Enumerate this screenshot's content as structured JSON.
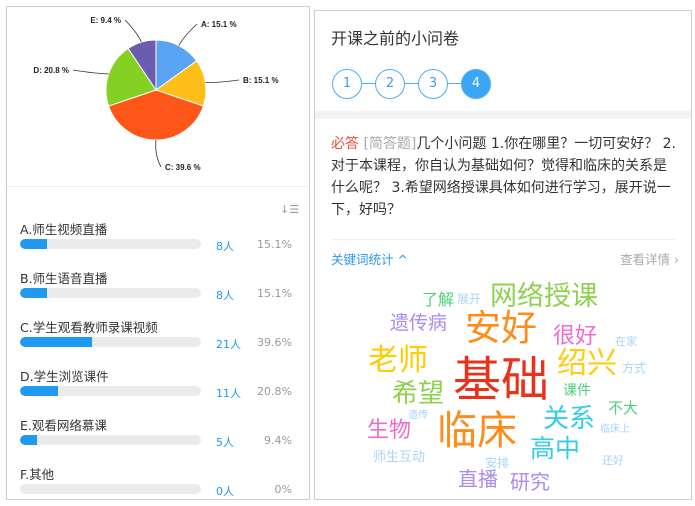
{
  "chart_data": {
    "type": "pie",
    "categories": [
      "A",
      "B",
      "C",
      "D",
      "E"
    ],
    "values": [
      15.1,
      15.1,
      39.6,
      20.8,
      9.4
    ],
    "labels": [
      "A: 15.1 %",
      "B: 15.1 %",
      "C: 39.6 %",
      "D: 20.8 %",
      "E: 9.4 %"
    ],
    "colors": [
      "#5aa4f5",
      "#fdbe19",
      "#fe5518",
      "#84d124",
      "#6b5caf"
    ]
  },
  "results": {
    "sort_icon": "sort-icon",
    "options": [
      {
        "label": "A.师生视频直播",
        "count": "8人",
        "percent": "15.1%",
        "value": 15.1
      },
      {
        "label": "B.师生语音直播",
        "count": "8人",
        "percent": "15.1%",
        "value": 15.1
      },
      {
        "label": "C.学生观看教师录课视频",
        "count": "21人",
        "percent": "39.6%",
        "value": 39.6
      },
      {
        "label": "D.学生浏览课件",
        "count": "11人",
        "percent": "20.8%",
        "value": 20.8
      },
      {
        "label": "E.观看网络慕课",
        "count": "5人",
        "percent": "9.4%",
        "value": 9.4
      },
      {
        "label": "F.其他",
        "count": "0人",
        "percent": "0%",
        "value": 0
      }
    ]
  },
  "survey": {
    "title": "开课之前的小问卷",
    "steps": [
      "1",
      "2",
      "3",
      "4"
    ],
    "active_step": "4",
    "required": "必答",
    "qtype": "[简答题]",
    "question": "几个小问题 1.你在哪里？一切可安好？ 2.对于本课程，你自认为基础如何？觉得和临床的关系是什么呢？ 3.希望网络授课具体如何进行学习，展开说一下，好吗？",
    "keyword_stats": "关键词统计",
    "view_detail": "查看详情"
  },
  "wordcloud": [
    {
      "text": "了解",
      "color": "#4cd07d"
    },
    {
      "text": "展开",
      "color": "#a8d4f8"
    },
    {
      "text": "网络授课",
      "color": "#8fd14f"
    },
    {
      "text": "遗传病",
      "color": "#a98cf3"
    },
    {
      "text": "安好",
      "color": "#ff8c1a"
    },
    {
      "text": "很好",
      "color": "#f06bc9"
    },
    {
      "text": "在家",
      "color": "#a8d4f8"
    },
    {
      "text": "老师",
      "color": "#ffcc00"
    },
    {
      "text": "基础",
      "color": "#e8321c"
    },
    {
      "text": "绍兴",
      "color": "#ffcc11"
    },
    {
      "text": "方式",
      "color": "#a8d4f8"
    },
    {
      "text": "希望",
      "color": "#8fd14f"
    },
    {
      "text": "课件",
      "color": "#4cd07d"
    },
    {
      "text": "不大",
      "color": "#4cd07d"
    },
    {
      "text": "遗传",
      "color": "#a8d4f8"
    },
    {
      "text": "关系",
      "color": "#33ccee"
    },
    {
      "text": "临床",
      "color": "#ff8c1a"
    },
    {
      "text": "临床上",
      "color": "#a8d4f8"
    },
    {
      "text": "生物",
      "color": "#f06bc9"
    },
    {
      "text": "高中",
      "color": "#33ccee"
    },
    {
      "text": "师生互动",
      "color": "#a8d4f8"
    },
    {
      "text": "安排",
      "color": "#a8d4f8"
    },
    {
      "text": "还好",
      "color": "#a8d4f8"
    },
    {
      "text": "直播",
      "color": "#a98cf3"
    },
    {
      "text": "研究",
      "color": "#a98cf3"
    }
  ]
}
